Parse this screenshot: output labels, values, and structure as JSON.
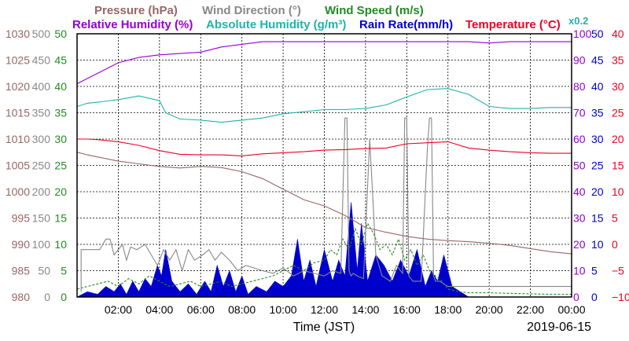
{
  "chart_data": {
    "type": "line",
    "date_label": "2019-06-15",
    "xlabel": "Time (JST)",
    "x_ticks": [
      "02:00",
      "04:00",
      "06:00",
      "08:00",
      "10:00",
      "12:00",
      "14:00",
      "16:00",
      "18:00",
      "20:00",
      "22:00",
      "00:00"
    ],
    "x_range_hours": [
      0,
      24
    ],
    "grid": true,
    "header": {
      "row1": [
        {
          "text": "Pressure (hPa)",
          "color": "#996666"
        },
        {
          "text": "Wind Direction (°)",
          "color": "#888888"
        },
        {
          "text": "Wind Speed (m/s)",
          "color": "#228B22"
        }
      ],
      "row2": [
        {
          "text": "Relative Humidity (%)",
          "color": "#9400D3"
        },
        {
          "text": "Absolute Humidity (g/m³)",
          "color": "#20B2AA"
        },
        {
          "text": "Rain Rate(mm/h)",
          "color": "#0000CC"
        },
        {
          "text": "Temperature (°C)",
          "color": "#EE0022"
        }
      ],
      "scale_note": {
        "text": "x0.2",
        "color": "#20B2AA"
      }
    },
    "axes": {
      "pressure": {
        "ticks": [
          "980",
          "985",
          "990",
          "995",
          "1000",
          "1005",
          "1010",
          "1015",
          "1020",
          "1025",
          "1030"
        ],
        "color": "#996666",
        "range": [
          980,
          1030
        ]
      },
      "wind_direction": {
        "ticks": [
          "0",
          "50",
          "100",
          "150",
          "200",
          "250",
          "300",
          "350",
          "400",
          "450",
          "500"
        ],
        "color": "#888888",
        "range": [
          0,
          500
        ]
      },
      "wind_speed": {
        "ticks": [
          "0",
          "5",
          "10",
          "15",
          "20",
          "25",
          "30",
          "35",
          "40",
          "45",
          "50"
        ],
        "color": "#228B22",
        "range": [
          0,
          50
        ]
      },
      "relative_humidity": {
        "ticks": [
          "0",
          "10",
          "20",
          "30",
          "40",
          "50",
          "60",
          "70",
          "80",
          "90",
          "100"
        ],
        "color": "#9400D3",
        "range": [
          0,
          100
        ]
      },
      "rain_rate": {
        "ticks": [
          "0",
          "5",
          "10",
          "15",
          "20",
          "25",
          "30",
          "35",
          "40",
          "45",
          "50"
        ],
        "color": "#0000CC",
        "range": [
          0,
          50
        ]
      },
      "temperature": {
        "ticks": [
          "−10",
          "−5",
          "0",
          "5",
          "10",
          "15",
          "20",
          "25",
          "30",
          "35",
          "40"
        ],
        "color": "#EE0022",
        "range": [
          -10,
          40
        ]
      }
    },
    "series": [
      {
        "name": "Pressure (hPa)",
        "axis": "pressure",
        "color": "#996666",
        "x": [
          0,
          0.5,
          1,
          2,
          3,
          4,
          5,
          6,
          7,
          8,
          9,
          10,
          11,
          12,
          13,
          14,
          15,
          16,
          17,
          18,
          19,
          20,
          21,
          22,
          23,
          24
        ],
        "y": [
          1007.5,
          1007,
          1006.6,
          1005.8,
          1005.3,
          1004.8,
          1004.5,
          1004.8,
          1004.6,
          1003.8,
          1002.5,
          1000.5,
          998.5,
          997.3,
          995.5,
          993.2,
          992.3,
          991.5,
          991,
          990.7,
          990.5,
          990.2,
          989.8,
          989.2,
          988.6,
          988.2
        ]
      },
      {
        "name": "Relative Humidity (%)",
        "axis": "relative_humidity",
        "color": "#9400D3",
        "x": [
          0,
          0.5,
          1,
          2,
          3,
          4,
          5,
          6,
          7,
          8,
          9,
          10,
          11,
          12,
          13,
          14,
          15,
          16,
          17,
          18,
          19,
          20,
          21,
          22,
          23,
          24
        ],
        "y": [
          81,
          83,
          85,
          89,
          91,
          92,
          92.5,
          93,
          95,
          96,
          97,
          97,
          97,
          97,
          97,
          97,
          97,
          97,
          97,
          97,
          97,
          96.5,
          97,
          97,
          97,
          97
        ]
      },
      {
        "name": "Absolute Humidity (g/m³)",
        "axis": "wind_speed",
        "color": "#20B2AA",
        "x": [
          0,
          0.5,
          1,
          2,
          3,
          4,
          4.3,
          5,
          6,
          7,
          8,
          9,
          10,
          11,
          12,
          13,
          14,
          15,
          16,
          17,
          18,
          19,
          20,
          21,
          22,
          23,
          24
        ],
        "y": [
          36.2,
          36.8,
          37,
          37.5,
          38.2,
          37.3,
          35,
          33.8,
          33.6,
          33.2,
          33.6,
          34,
          34.8,
          35.2,
          35.6,
          35.6,
          35.8,
          36.5,
          38,
          39.4,
          39.6,
          38.5,
          36.2,
          35.8,
          35.8,
          36,
          36
        ]
      },
      {
        "name": "Temperature (°C)",
        "axis": "temperature",
        "color": "#EE0022",
        "x": [
          0,
          0.5,
          1,
          2,
          3,
          4,
          5,
          6,
          7,
          8,
          9,
          10,
          11,
          12,
          13,
          14,
          15,
          16,
          17,
          18,
          19,
          20,
          21,
          22,
          23,
          24
        ],
        "y": [
          20,
          20,
          19.9,
          19.5,
          18.8,
          17.8,
          17.1,
          17.0,
          17.0,
          16.8,
          17.2,
          17.4,
          17.6,
          17.9,
          18.0,
          18.2,
          18.3,
          19.1,
          19.3,
          19.5,
          18.3,
          17.9,
          17.6,
          17.4,
          17.3,
          17.3
        ]
      },
      {
        "name": "Wind Direction (°)",
        "axis": "wind_direction",
        "color": "#888888",
        "x": [
          0.2,
          0.2,
          0.6,
          1.1,
          1.4,
          1.6,
          1.8,
          2.2,
          2.4,
          2.6,
          2.9,
          3.3,
          3.6,
          3.9,
          4.2,
          4.5,
          4.8,
          5.1,
          5.4,
          5.7,
          6.1,
          6.4,
          6.7,
          7,
          7.4,
          7.8,
          8.2,
          8.6,
          9,
          9.5,
          10,
          10.5,
          11,
          11.5,
          12,
          12.4,
          12.8,
          13,
          13.1,
          13.2,
          13.3,
          13.4,
          13.6,
          13.9,
          14.2,
          14.5,
          14.8,
          15.2,
          15.5,
          15.8,
          15.9,
          16.0,
          16.1,
          16.3,
          16.7,
          17.0,
          17.1,
          17.2,
          17.3,
          17.4,
          17.6,
          17.8,
          18,
          18.5,
          19,
          20,
          21,
          22,
          23,
          24
        ],
        "y": [
          10,
          90,
          90,
          90,
          110,
          110,
          80,
          100,
          70,
          95,
          90,
          100,
          80,
          60,
          90,
          70,
          90,
          50,
          90,
          70,
          80,
          90,
          70,
          85,
          70,
          50,
          60,
          55,
          50,
          45,
          55,
          40,
          50,
          45,
          40,
          50,
          45,
          340,
          340,
          50,
          40,
          45,
          40,
          35,
          300,
          80,
          40,
          30,
          60,
          45,
          340,
          340,
          40,
          30,
          30,
          280,
          340,
          340,
          40,
          30,
          30,
          25,
          20,
          20,
          20,
          20,
          20,
          20,
          20,
          20
        ]
      },
      {
        "name": "Wind Speed (m/s)",
        "axis": "wind_speed",
        "color": "#228B22",
        "x": [
          0,
          0.5,
          1,
          1.5,
          2,
          2.5,
          3,
          3.5,
          4,
          4.5,
          5,
          5.5,
          6,
          6.5,
          7,
          7.5,
          8,
          8.5,
          9,
          9.5,
          10,
          10.5,
          11,
          11.5,
          12,
          12.3,
          12.6,
          12.9,
          13.2,
          13.5,
          13.8,
          14.1,
          14.4,
          14.7,
          15,
          15.3,
          15.6,
          15.9,
          16.2,
          16.5,
          16.8,
          17.1,
          17.4,
          17.7,
          18,
          18.5,
          19,
          20,
          21,
          22,
          23,
          24
        ],
        "y": [
          1.5,
          2,
          2.5,
          3,
          2,
          3.5,
          2.5,
          4,
          3,
          2,
          2.5,
          3,
          2,
          2.5,
          3,
          2,
          2.5,
          3,
          3.5,
          4,
          5,
          6,
          5,
          6.5,
          7,
          9,
          8,
          11,
          9,
          13,
          10,
          14,
          12,
          9,
          10,
          8,
          11,
          7,
          9,
          6,
          8,
          5,
          4,
          3,
          1.5,
          1,
          0.8,
          0.8,
          0.7,
          0.6,
          0.5,
          0.5
        ]
      },
      {
        "name": "Rain Rate(mm/h)",
        "axis": "rain_rate",
        "color": "#0000CC",
        "x": [
          0,
          0.5,
          1,
          1.4,
          1.8,
          2.1,
          2.4,
          2.7,
          3,
          3.3,
          3.6,
          3.9,
          4.1,
          4.3,
          4.6,
          5,
          5.4,
          5.8,
          6.2,
          6.5,
          6.8,
          7.1,
          7.4,
          7.7,
          8,
          8.3,
          8.7,
          9.2,
          9.6,
          10,
          10.4,
          10.7,
          11,
          11.3,
          11.6,
          12,
          12.4,
          12.7,
          13,
          13.3,
          13.6,
          13.8,
          14.1,
          14.5,
          14.9,
          15.3,
          15.7,
          16.1,
          16.5,
          16.9,
          17.2,
          17.5,
          17.8,
          18.2,
          19,
          20,
          21,
          22,
          23,
          24
        ],
        "y": [
          0,
          1,
          0.5,
          2,
          1,
          2.5,
          0.5,
          3,
          1,
          3.5,
          2,
          6,
          4,
          9,
          3,
          1,
          2.5,
          0.5,
          3,
          1,
          6,
          2,
          5,
          1,
          4,
          0.5,
          2,
          1,
          3,
          2,
          4,
          11,
          3,
          7,
          2,
          9,
          3,
          7,
          4,
          18,
          5,
          14,
          3,
          8,
          6,
          3,
          7,
          4,
          9,
          2,
          5,
          3,
          8,
          2,
          0,
          0,
          0,
          0,
          0,
          0
        ]
      }
    ]
  }
}
